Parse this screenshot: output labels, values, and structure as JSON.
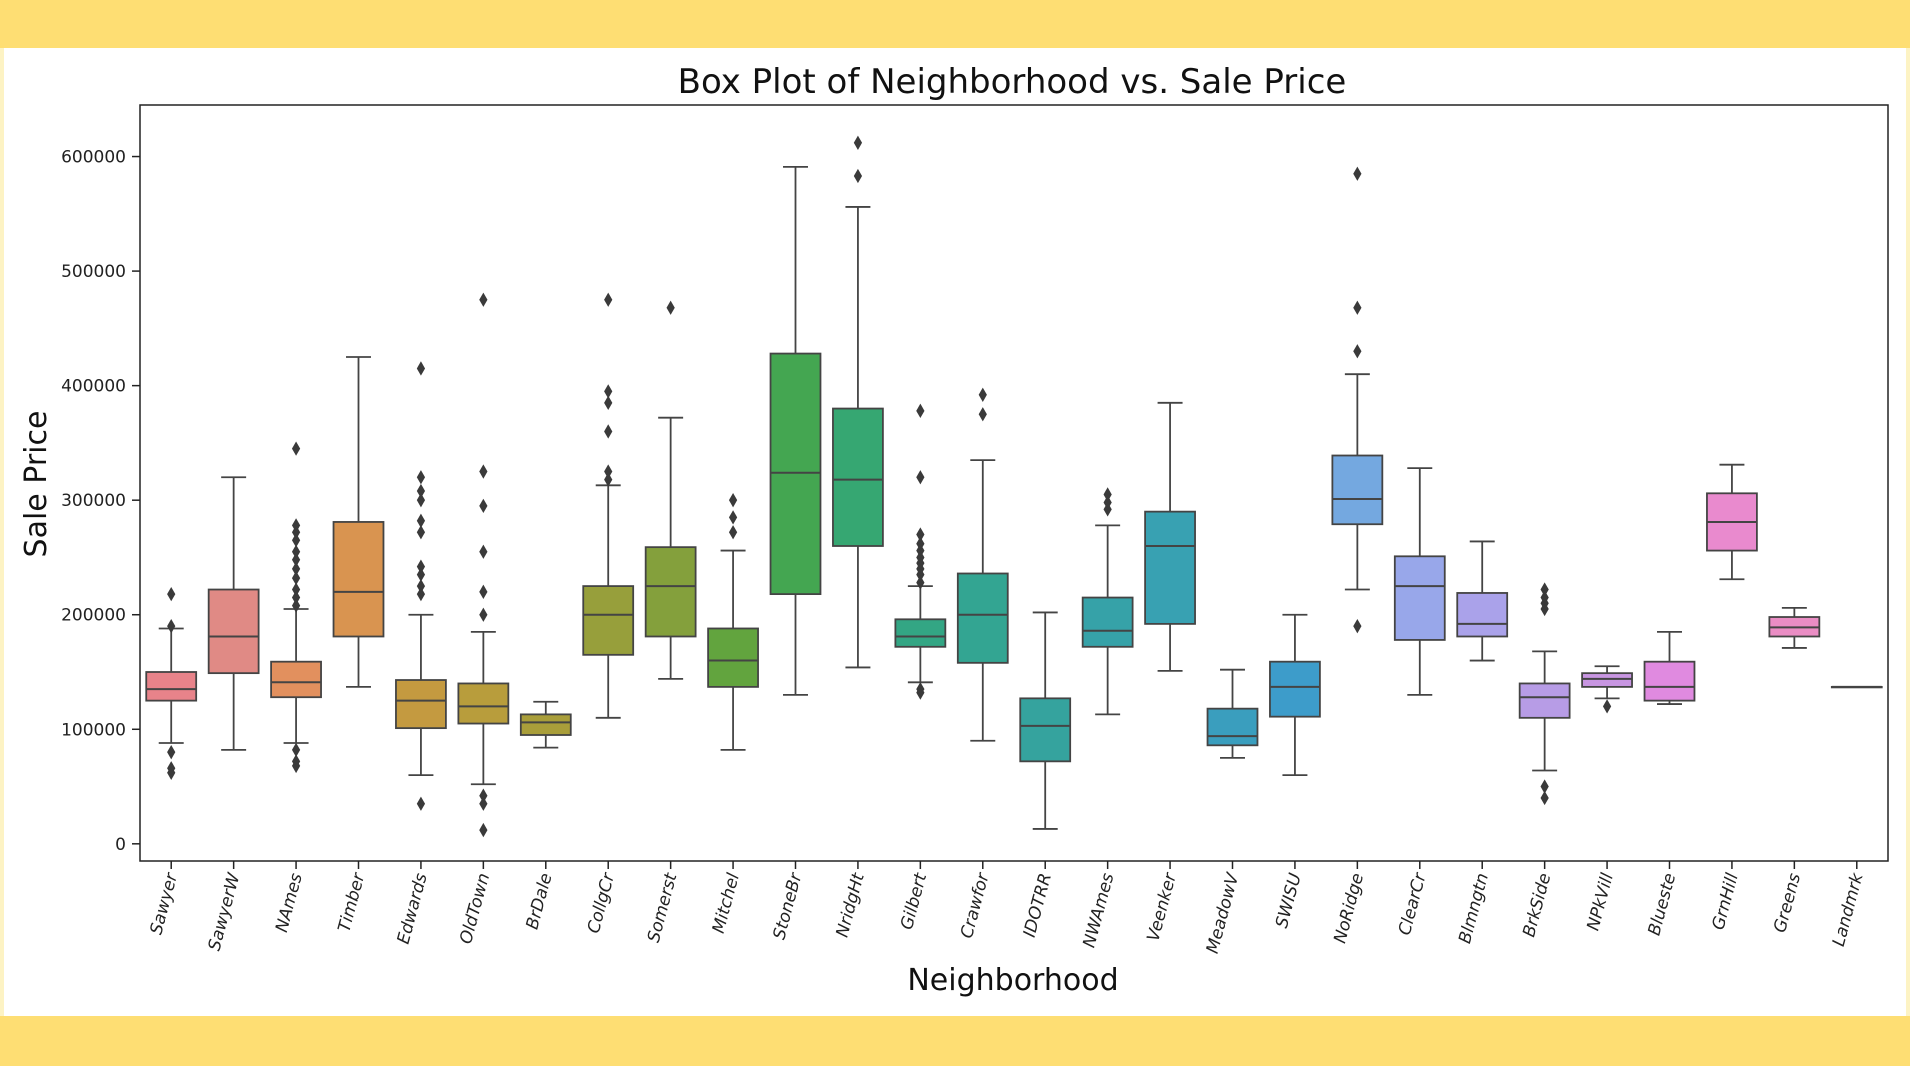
{
  "chart_data": {
    "type": "box",
    "title": "Box Plot of Neighborhood vs. Sale Price",
    "xlabel": "Neighborhood",
    "ylabel": "Sale Price",
    "ylim": [
      -15000,
      645000
    ],
    "yticks": [
      0,
      100000,
      200000,
      300000,
      400000,
      500000,
      600000
    ],
    "grid": false,
    "legend": "none",
    "categories": [
      {
        "name": "Sawyer",
        "color": "#e8838a",
        "q1": 125000,
        "median": 135000,
        "q3": 150000,
        "wlo": 88000,
        "whi": 188000,
        "outliers": [
          62000,
          66000,
          80000,
          190000,
          218000
        ]
      },
      {
        "name": "SawyerW",
        "color": "#e08a85",
        "q1": 149000,
        "median": 181000,
        "q3": 222000,
        "wlo": 82000,
        "whi": 320000,
        "outliers": []
      },
      {
        "name": "NAmes",
        "color": "#e2905e",
        "q1": 128000,
        "median": 141000,
        "q3": 159000,
        "wlo": 88000,
        "whi": 205000,
        "outliers": [
          68000,
          72000,
          82000,
          208000,
          215000,
          222000,
          232000,
          240000,
          248000,
          255000,
          265000,
          272000,
          278000,
          345000
        ]
      },
      {
        "name": "Timber",
        "color": "#d99450",
        "q1": 181000,
        "median": 220000,
        "q3": 281000,
        "wlo": 137000,
        "whi": 425000,
        "outliers": []
      },
      {
        "name": "Edwards",
        "color": "#c49a40",
        "q1": 101000,
        "median": 125000,
        "q3": 143000,
        "wlo": 60000,
        "whi": 200000,
        "outliers": [
          35000,
          218000,
          225000,
          235000,
          242000,
          272000,
          282000,
          300000,
          308000,
          320000,
          415000
        ]
      },
      {
        "name": "OldTown",
        "color": "#b89d3c",
        "q1": 105000,
        "median": 120000,
        "q3": 140000,
        "wlo": 52000,
        "whi": 185000,
        "outliers": [
          12000,
          35000,
          42000,
          200000,
          220000,
          255000,
          295000,
          325000,
          475000
        ]
      },
      {
        "name": "BrDale",
        "color": "#a99e3a",
        "q1": 95000,
        "median": 106000,
        "q3": 113000,
        "wlo": 84000,
        "whi": 124000,
        "outliers": []
      },
      {
        "name": "CollgCr",
        "color": "#979f3b",
        "q1": 165000,
        "median": 200000,
        "q3": 225000,
        "wlo": 110000,
        "whi": 313000,
        "outliers": [
          318000,
          325000,
          360000,
          385000,
          395000,
          475000
        ]
      },
      {
        "name": "Somerst",
        "color": "#84a03c",
        "q1": 181000,
        "median": 225000,
        "q3": 259000,
        "wlo": 144000,
        "whi": 372000,
        "outliers": [
          468000
        ]
      },
      {
        "name": "Mitchel",
        "color": "#62a43e",
        "q1": 137000,
        "median": 160000,
        "q3": 188000,
        "wlo": 82000,
        "whi": 256000,
        "outliers": [
          272000,
          285000,
          300000
        ]
      },
      {
        "name": "StoneBr",
        "color": "#44a651",
        "q1": 218000,
        "median": 324000,
        "q3": 428000,
        "wlo": 130000,
        "whi": 591000,
        "outliers": []
      },
      {
        "name": "NridgHt",
        "color": "#36a772",
        "q1": 260000,
        "median": 318000,
        "q3": 380000,
        "wlo": 154000,
        "whi": 556000,
        "outliers": [
          583000,
          612000
        ]
      },
      {
        "name": "Gilbert",
        "color": "#33a684",
        "q1": 172000,
        "median": 181000,
        "q3": 196000,
        "wlo": 141000,
        "whi": 225000,
        "outliers": [
          132000,
          135000,
          228000,
          235000,
          240000,
          245000,
          250000,
          256000,
          262000,
          270000,
          320000,
          378000
        ]
      },
      {
        "name": "Crawfor",
        "color": "#33a592",
        "q1": 158000,
        "median": 200000,
        "q3": 236000,
        "wlo": 90000,
        "whi": 335000,
        "outliers": [
          375000,
          392000
        ]
      },
      {
        "name": "IDOTRR",
        "color": "#35a39e",
        "q1": 72000,
        "median": 103000,
        "q3": 127000,
        "wlo": 13000,
        "whi": 202000,
        "outliers": []
      },
      {
        "name": "NWAmes",
        "color": "#36a2a8",
        "q1": 172000,
        "median": 186000,
        "q3": 215000,
        "wlo": 113000,
        "whi": 278000,
        "outliers": [
          292000,
          298000,
          305000
        ]
      },
      {
        "name": "Veenker",
        "color": "#38a1b2",
        "q1": 192000,
        "median": 260000,
        "q3": 290000,
        "wlo": 151000,
        "whi": 385000,
        "outliers": []
      },
      {
        "name": "MeadowV",
        "color": "#3a9ebe",
        "q1": 86000,
        "median": 94000,
        "q3": 118000,
        "wlo": 75000,
        "whi": 152000,
        "outliers": []
      },
      {
        "name": "SWISU",
        "color": "#3d9cca",
        "q1": 111000,
        "median": 137000,
        "q3": 159000,
        "wlo": 60000,
        "whi": 200000,
        "outliers": []
      },
      {
        "name": "NoRidge",
        "color": "#74a8e0",
        "q1": 279000,
        "median": 301000,
        "q3": 339000,
        "wlo": 222000,
        "whi": 410000,
        "outliers": [
          190000,
          430000,
          468000,
          585000
        ]
      },
      {
        "name": "ClearCr",
        "color": "#98a7ea",
        "q1": 178000,
        "median": 225000,
        "q3": 251000,
        "wlo": 130000,
        "whi": 328000,
        "outliers": []
      },
      {
        "name": "Blmngtn",
        "color": "#aaa2ea",
        "q1": 181000,
        "median": 192000,
        "q3": 219000,
        "wlo": 160000,
        "whi": 264000,
        "outliers": []
      },
      {
        "name": "BrkSide",
        "color": "#b79ce6",
        "q1": 110000,
        "median": 128000,
        "q3": 140000,
        "wlo": 64000,
        "whi": 168000,
        "outliers": [
          40000,
          50000,
          205000,
          210000,
          215000,
          222000
        ]
      },
      {
        "name": "NPkVill",
        "color": "#c896e2",
        "q1": 137000,
        "median": 144000,
        "q3": 149000,
        "wlo": 127000,
        "whi": 155000,
        "outliers": [
          120000
        ]
      },
      {
        "name": "Blueste",
        "color": "#e08ae0",
        "q1": 125000,
        "median": 137000,
        "q3": 159000,
        "wlo": 122000,
        "whi": 185000,
        "outliers": []
      },
      {
        "name": "GrnHill",
        "color": "#e98ace",
        "q1": 256000,
        "median": 281000,
        "q3": 306000,
        "wlo": 231000,
        "whi": 331000,
        "outliers": []
      },
      {
        "name": "Greens",
        "color": "#ea8dc4",
        "q1": 181000,
        "median": 189000,
        "q3": 198000,
        "wlo": 171000,
        "whi": 206000,
        "outliers": []
      },
      {
        "name": "Landmrk",
        "color": "#e98cb8",
        "q1": 137000,
        "median": 137000,
        "q3": 137000,
        "wlo": 137000,
        "whi": 137000,
        "outliers": []
      }
    ]
  }
}
